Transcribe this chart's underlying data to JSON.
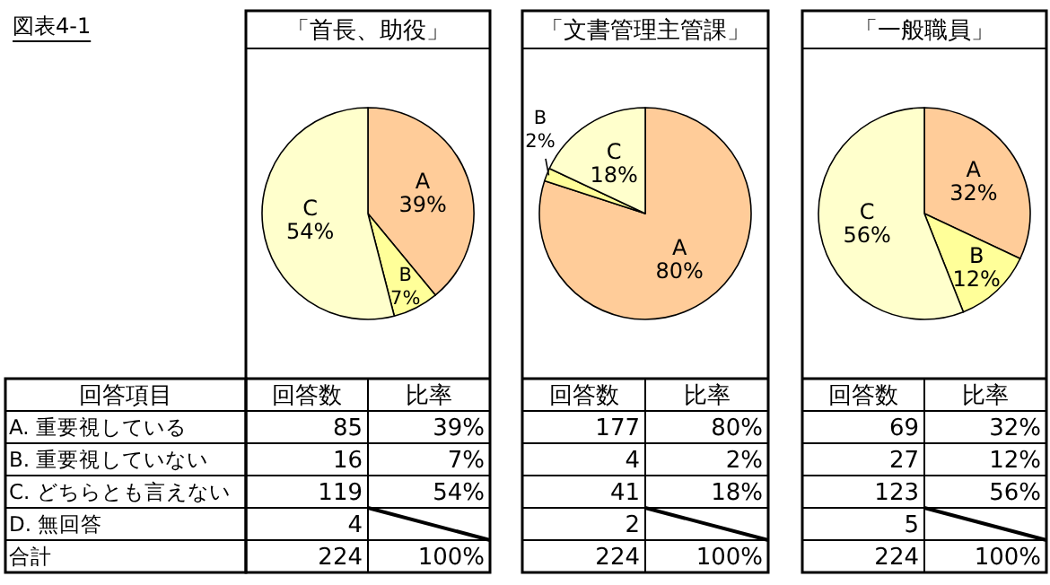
{
  "chart_data": [
    {
      "type": "other",
      "annotations": [
        "図表4-1",
        "回答項目",
        "A. 重要視している",
        "B. 重要視していない",
        "C. どちらとも言えない",
        "D. 無回答",
        "合計"
      ]
    },
    {
      "type": "pie",
      "title": "「首長、助役」",
      "categories": [
        "A",
        "B",
        "C"
      ],
      "values": [
        39,
        7,
        54
      ],
      "value_labels": [
        "39%",
        "7%",
        "54%"
      ],
      "colors": [
        "#ffcc99",
        "#ffff99",
        "#ffffcc"
      ],
      "annotations": [
        "回答数",
        "比率",
        "85",
        "39%",
        "16",
        "7%",
        "119",
        "54%",
        "4",
        "224",
        "100%"
      ]
    },
    {
      "type": "pie",
      "title": "「文書管理主管課」",
      "categories": [
        "A",
        "B",
        "C"
      ],
      "values": [
        80,
        2,
        18
      ],
      "value_labels": [
        "80%",
        "2%",
        "18%"
      ],
      "colors": [
        "#ffcc99",
        "#ffff99",
        "#ffffcc"
      ],
      "annotations": [
        "回答数",
        "比率",
        "177",
        "80%",
        "4",
        "2%",
        "41",
        "18%",
        "2",
        "224",
        "100%"
      ]
    },
    {
      "type": "pie",
      "title": "「一般職員」",
      "categories": [
        "A",
        "B",
        "C"
      ],
      "values": [
        32,
        12,
        56
      ],
      "value_labels": [
        "32%",
        "12%",
        "56%"
      ],
      "colors": [
        "#ffcc99",
        "#ffff99",
        "#ffffcc"
      ],
      "annotations": [
        "回答数",
        "比率",
        "69",
        "32%",
        "27",
        "12%",
        "123",
        "56%",
        "5",
        "224",
        "100%"
      ]
    }
  ]
}
